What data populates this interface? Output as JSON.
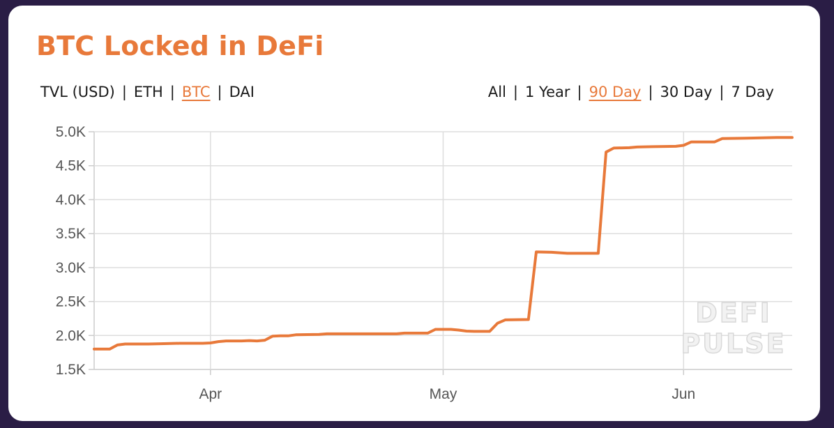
{
  "title": "BTC Locked in DeFi",
  "metric_tabs": [
    {
      "label": "TVL (USD)",
      "active": false
    },
    {
      "label": "ETH",
      "active": false
    },
    {
      "label": "BTC",
      "active": true
    },
    {
      "label": "DAI",
      "active": false
    }
  ],
  "range_tabs": [
    {
      "label": "All",
      "active": false
    },
    {
      "label": "1 Year",
      "active": false
    },
    {
      "label": "90 Day",
      "active": true
    },
    {
      "label": "30 Day",
      "active": false
    },
    {
      "label": "7 Day",
      "active": false
    }
  ],
  "separator": "|",
  "watermark": {
    "line1": "DEFI",
    "line2": "PULSE"
  },
  "colors": {
    "accent": "#e8793a",
    "grid": "#dddddd",
    "text": "#1a1a1a",
    "background": "#2a1d45"
  },
  "chart_data": {
    "type": "line",
    "x_range": [
      "2020-03-17",
      "2020-06-15"
    ],
    "ylim": [
      1500,
      5000
    ],
    "y_ticks": [
      {
        "value": 5000,
        "label": "5.0K"
      },
      {
        "value": 4500,
        "label": "4.5K"
      },
      {
        "value": 4000,
        "label": "4.0K"
      },
      {
        "value": 3500,
        "label": "3.5K"
      },
      {
        "value": 3000,
        "label": "3.0K"
      },
      {
        "value": 2500,
        "label": "2.5K"
      },
      {
        "value": 2000,
        "label": "2.0K"
      },
      {
        "value": 1500,
        "label": "1.5K"
      }
    ],
    "x_ticks": [
      {
        "date": "2020-04-01",
        "label": "Apr"
      },
      {
        "date": "2020-05-01",
        "label": "May"
      },
      {
        "date": "2020-06-01",
        "label": "Jun"
      }
    ],
    "grid": true,
    "series": [
      {
        "color": "#e8793a",
        "points": [
          [
            "2020-03-17",
            1800
          ],
          [
            "2020-03-19",
            1800
          ],
          [
            "2020-03-20",
            1860
          ],
          [
            "2020-03-21",
            1875
          ],
          [
            "2020-03-23",
            1875
          ],
          [
            "2020-03-24",
            1875
          ],
          [
            "2020-03-26",
            1880
          ],
          [
            "2020-03-28",
            1885
          ],
          [
            "2020-03-31",
            1885
          ],
          [
            "2020-04-01",
            1890
          ],
          [
            "2020-04-02",
            1910
          ],
          [
            "2020-04-03",
            1920
          ],
          [
            "2020-04-05",
            1920
          ],
          [
            "2020-04-06",
            1925
          ],
          [
            "2020-04-07",
            1920
          ],
          [
            "2020-04-08",
            1930
          ],
          [
            "2020-04-09",
            1990
          ],
          [
            "2020-04-10",
            1995
          ],
          [
            "2020-04-11",
            1995
          ],
          [
            "2020-04-12",
            2010
          ],
          [
            "2020-04-15",
            2015
          ],
          [
            "2020-04-16",
            2025
          ],
          [
            "2020-04-20",
            2025
          ],
          [
            "2020-04-25",
            2025
          ],
          [
            "2020-04-26",
            2035
          ],
          [
            "2020-04-29",
            2035
          ],
          [
            "2020-04-30",
            2090
          ],
          [
            "2020-05-02",
            2090
          ],
          [
            "2020-05-03",
            2080
          ],
          [
            "2020-05-04",
            2065
          ],
          [
            "2020-05-05",
            2060
          ],
          [
            "2020-05-07",
            2060
          ],
          [
            "2020-05-08",
            2180
          ],
          [
            "2020-05-09",
            2230
          ],
          [
            "2020-05-12",
            2235
          ],
          [
            "2020-05-13",
            3230
          ],
          [
            "2020-05-15",
            3225
          ],
          [
            "2020-05-17",
            3210
          ],
          [
            "2020-05-21",
            3210
          ],
          [
            "2020-05-22",
            4700
          ],
          [
            "2020-05-23",
            4760
          ],
          [
            "2020-05-25",
            4765
          ],
          [
            "2020-05-26",
            4775
          ],
          [
            "2020-05-28",
            4780
          ],
          [
            "2020-05-31",
            4785
          ],
          [
            "2020-06-01",
            4800
          ],
          [
            "2020-06-02",
            4850
          ],
          [
            "2020-06-05",
            4850
          ],
          [
            "2020-06-06",
            4900
          ],
          [
            "2020-06-09",
            4905
          ],
          [
            "2020-06-13",
            4915
          ],
          [
            "2020-06-15",
            4915
          ]
        ]
      }
    ]
  }
}
